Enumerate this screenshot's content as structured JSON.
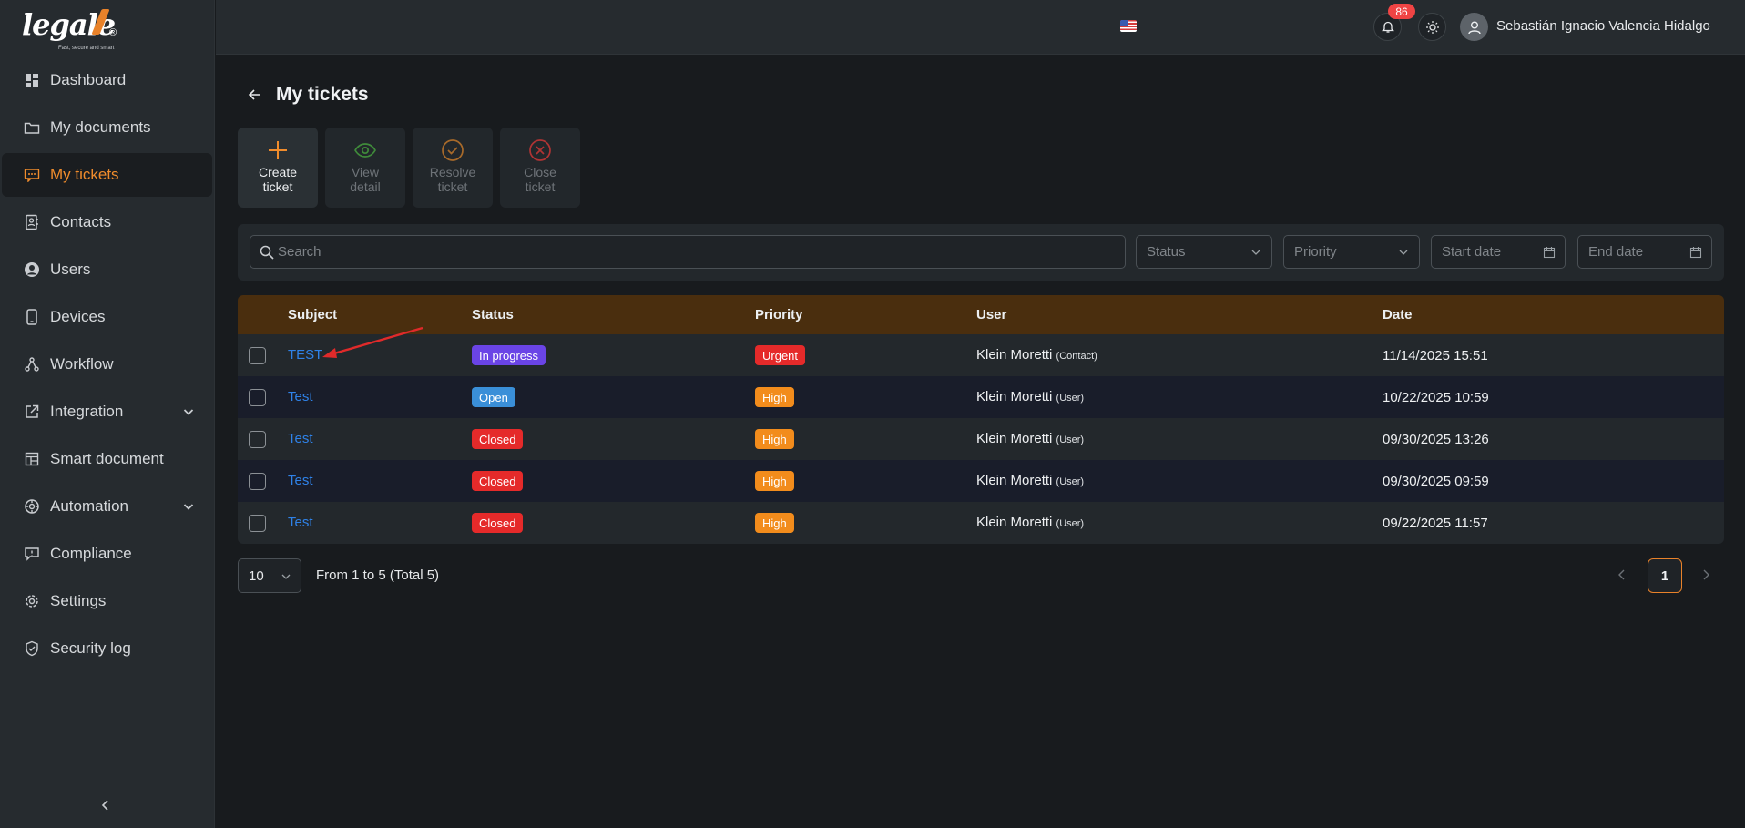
{
  "brand": {
    "name": "legale",
    "reg": "®",
    "tagline": "Fast, secure and smart",
    "accent": "#e8822a"
  },
  "sidebar": {
    "items": [
      {
        "label": "Dashboard",
        "icon": "dashboard-icon"
      },
      {
        "label": "My documents",
        "icon": "folder-icon"
      },
      {
        "label": "My tickets",
        "icon": "ticket-icon",
        "active": true
      },
      {
        "label": "Contacts",
        "icon": "contacts-icon"
      },
      {
        "label": "Users",
        "icon": "user-circle-icon"
      },
      {
        "label": "Devices",
        "icon": "phone-icon"
      },
      {
        "label": "Workflow",
        "icon": "workflow-icon"
      },
      {
        "label": "Integration",
        "icon": "external-link-icon",
        "expandable": true
      },
      {
        "label": "Smart document",
        "icon": "layout-icon"
      },
      {
        "label": "Automation",
        "icon": "automation-icon",
        "expandable": true
      },
      {
        "label": "Compliance",
        "icon": "chat-icon"
      },
      {
        "label": "Settings",
        "icon": "gear-icon"
      },
      {
        "label": "Security log",
        "icon": "shield-icon"
      }
    ]
  },
  "header": {
    "notifications_count": "86",
    "user_name": "Sebastián Ignacio Valencia Hidalgo"
  },
  "page": {
    "title": "My tickets"
  },
  "actions": {
    "create": "Create ticket",
    "view": "View detail",
    "resolve": "Resolve ticket",
    "close": "Close ticket"
  },
  "filters": {
    "search_placeholder": "Search",
    "status_placeholder": "Status",
    "priority_placeholder": "Priority",
    "start_date_placeholder": "Start date",
    "end_date_placeholder": "End date"
  },
  "table": {
    "headers": {
      "subject": "Subject",
      "status": "Status",
      "priority": "Priority",
      "user": "User",
      "date": "Date"
    },
    "rows": [
      {
        "subject": "TEST",
        "status": "In progress",
        "status_color": "#6a44e6",
        "priority": "Urgent",
        "priority_color": "#e52a2a",
        "user": "Klein Moretti",
        "role": "(Contact)",
        "date": "11/14/2025 15:51"
      },
      {
        "subject": "Test",
        "status": "Open",
        "status_color": "#3a8fd8",
        "priority": "High",
        "priority_color": "#f28c1c",
        "user": "Klein Moretti",
        "role": "(User)",
        "date": "10/22/2025 10:59"
      },
      {
        "subject": "Test",
        "status": "Closed",
        "status_color": "#e52a2a",
        "priority": "High",
        "priority_color": "#f28c1c",
        "user": "Klein Moretti",
        "role": "(User)",
        "date": "09/30/2025 13:26"
      },
      {
        "subject": "Test",
        "status": "Closed",
        "status_color": "#e52a2a",
        "priority": "High",
        "priority_color": "#f28c1c",
        "user": "Klein Moretti",
        "role": "(User)",
        "date": "09/30/2025 09:59"
      },
      {
        "subject": "Test",
        "status": "Closed",
        "status_color": "#e52a2a",
        "priority": "High",
        "priority_color": "#f28c1c",
        "user": "Klein Moretti",
        "role": "(User)",
        "date": "09/22/2025 11:57"
      }
    ]
  },
  "pagination": {
    "page_size": "10",
    "range_text": "From 1 to 5 (Total 5)",
    "current_page": "1"
  }
}
